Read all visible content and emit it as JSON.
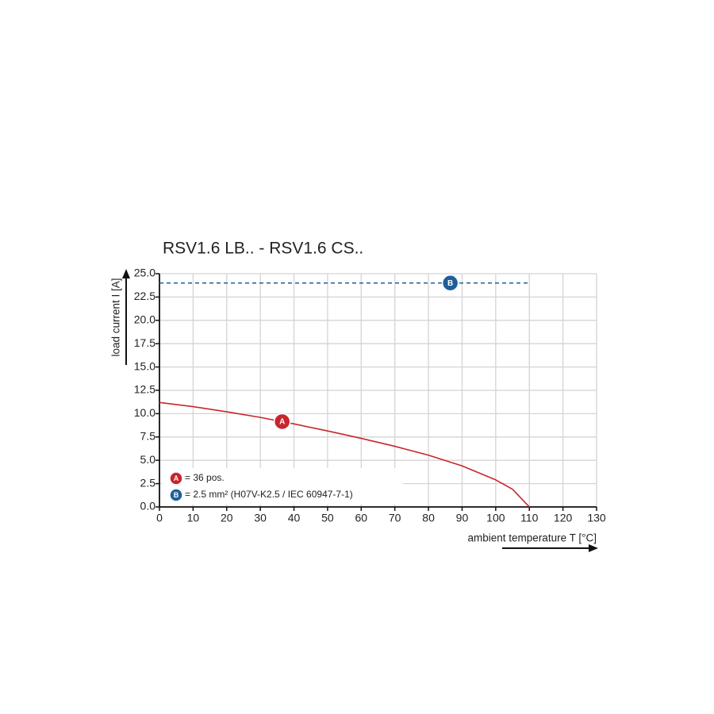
{
  "chart_data": {
    "type": "line",
    "title": "RSV1.6 LB.. - RSV1.6 CS..",
    "x_label": "ambient temperature T [°C]",
    "y_label": "load current I [A]",
    "x": [
      0,
      10,
      20,
      30,
      40,
      50,
      60,
      70,
      80,
      90,
      100,
      105,
      110
    ],
    "series": [
      {
        "name": "A",
        "description": "= 36 pos.",
        "color": "#c8262d",
        "dashed": false,
        "label_x": 36.5,
        "values": [
          11.2,
          10.75,
          10.2,
          9.6,
          8.9,
          8.15,
          7.35,
          6.5,
          5.55,
          4.4,
          2.9,
          1.9,
          0
        ]
      },
      {
        "name": "B",
        "description": "= 2.5 mm² (H07V-K2.5 / IEC 60947-7-1)",
        "color": "#1f5f99",
        "dashed": true,
        "label_x": 86.5,
        "values": [
          24,
          24,
          24,
          24,
          24,
          24,
          24,
          24,
          24,
          24,
          24,
          24,
          24
        ]
      }
    ],
    "xlim": [
      0,
      130
    ],
    "ylim": [
      0,
      25
    ],
    "xticks": [
      0,
      10,
      20,
      30,
      40,
      50,
      60,
      70,
      80,
      90,
      100,
      110,
      120,
      130
    ],
    "yticks": [
      {
        "value": 0,
        "label": "0.0"
      },
      {
        "value": 2.5,
        "label": "2.5"
      },
      {
        "value": 5,
        "label": "5.0"
      },
      {
        "value": 7.5,
        "label": "7.5"
      },
      {
        "value": 10,
        "label": "10.0"
      },
      {
        "value": 12.5,
        "label": "12.5"
      },
      {
        "value": 15,
        "label": "15.0"
      },
      {
        "value": 17.5,
        "label": "17.5"
      },
      {
        "value": 20,
        "label": "20.0"
      },
      {
        "value": 22.5,
        "label": "22.5"
      },
      {
        "value": 25,
        "label": "25.0"
      }
    ],
    "grid": true
  }
}
